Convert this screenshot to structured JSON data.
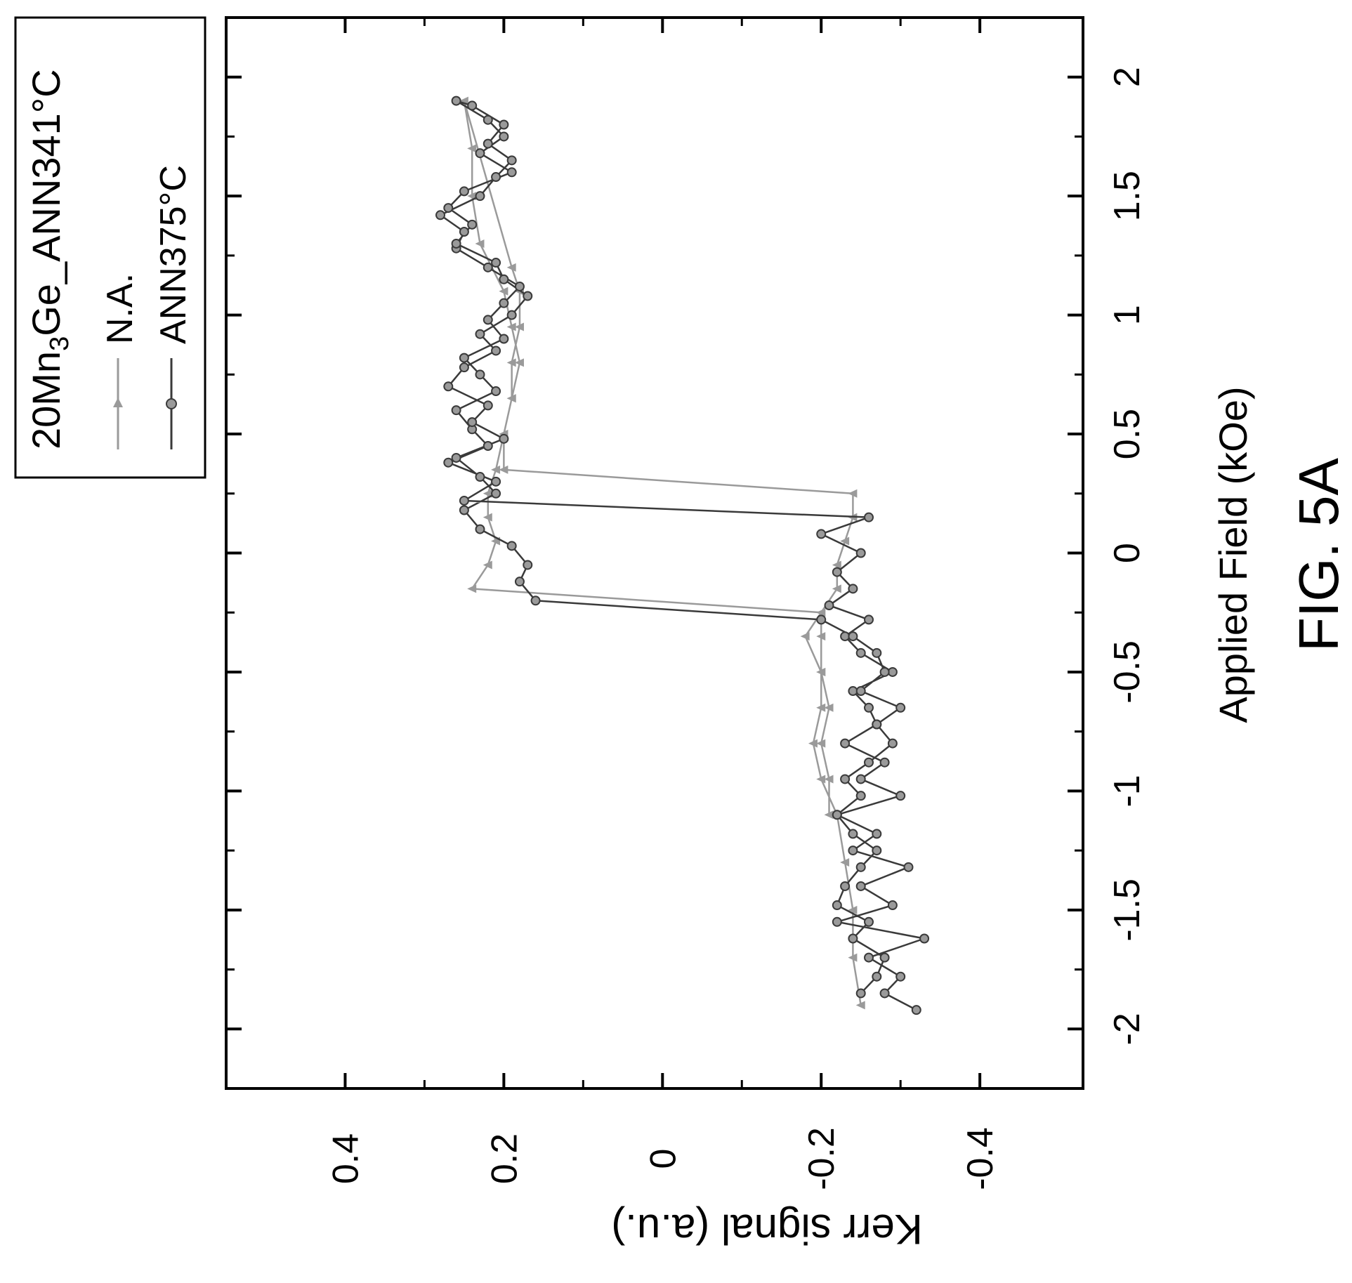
{
  "figure_label": "FIG. 5A",
  "chart_data": {
    "type": "scatter",
    "orientation": "rotated-90-ccw",
    "title": "",
    "xlabel": "Applied Field (kOe)",
    "ylabel": "Kerr signal (a.u.)",
    "xlim": [
      -2.25,
      2.25
    ],
    "ylim": [
      -0.53,
      0.55
    ],
    "x_ticks": [
      "-2",
      "-1.5",
      "-1",
      "-0.5",
      "0",
      "0.5",
      "1",
      "1.5",
      "2"
    ],
    "x_tick_values": [
      -2,
      -1.5,
      -1,
      -0.5,
      0,
      0.5,
      1,
      1.5,
      2
    ],
    "y_ticks": [
      "0.4",
      "0.2",
      "0",
      "-0.2",
      "-0.4"
    ],
    "y_tick_values": [
      0.4,
      0.2,
      0,
      -0.2,
      -0.4
    ],
    "grid": false,
    "legend": {
      "placement": "top-left",
      "title_parts": [
        "20Mn",
        "3",
        "Ge_ANN341°C"
      ],
      "entries": [
        "N.A.",
        "ANN375°C"
      ]
    },
    "series": [
      {
        "name": "N.A.",
        "color": "#9a9a9a",
        "marker": "triangle",
        "x": [
          -1.9,
          -1.7,
          -1.5,
          -1.3,
          -1.1,
          -0.95,
          -0.8,
          -0.65,
          -0.5,
          -0.35,
          -0.25,
          -0.15,
          -0.05,
          0.05,
          0.15,
          0.25,
          0.35,
          0.5,
          0.65,
          0.8,
          0.95,
          1.1,
          1.2,
          1.9,
          1.7,
          1.5,
          1.3,
          1.1,
          0.95,
          0.8,
          0.65,
          0.5,
          0.35,
          0.25,
          0.15,
          0.05,
          -0.05,
          -0.15,
          -0.25,
          -0.35,
          -0.5,
          -0.65,
          -0.8,
          -0.95,
          -1.1
        ],
        "y": [
          -0.25,
          -0.24,
          -0.24,
          -0.23,
          -0.22,
          -0.2,
          -0.19,
          -0.2,
          -0.2,
          -0.18,
          -0.2,
          -0.22,
          -0.22,
          -0.23,
          -0.24,
          -0.24,
          0.2,
          0.2,
          0.19,
          0.19,
          0.18,
          0.18,
          0.19,
          0.25,
          0.24,
          0.24,
          0.23,
          0.2,
          0.19,
          0.18,
          0.19,
          0.2,
          0.21,
          0.22,
          0.22,
          0.21,
          0.22,
          0.24,
          -0.2,
          -0.2,
          -0.2,
          -0.21,
          -0.2,
          -0.21,
          -0.21
        ]
      },
      {
        "name": "ANN375°C",
        "color": "#3a3a3a",
        "marker": "circle",
        "x": [
          -1.92,
          -1.85,
          -1.78,
          -1.7,
          -1.62,
          -1.55,
          -1.48,
          -1.4,
          -1.32,
          -1.25,
          -1.18,
          -1.1,
          -1.02,
          -0.95,
          -0.88,
          -0.8,
          -0.72,
          -0.65,
          -0.58,
          -0.5,
          -0.42,
          -0.35,
          -0.28,
          -0.22,
          -0.15,
          -0.08,
          0.0,
          0.08,
          0.15,
          0.22,
          0.3,
          0.38,
          0.45,
          0.52,
          0.6,
          0.68,
          0.75,
          0.82,
          0.9,
          0.98,
          1.05,
          1.12,
          1.2,
          1.28,
          1.35,
          1.42,
          1.5,
          1.58,
          1.65,
          1.72,
          1.8,
          1.88,
          1.9,
          1.82,
          1.75,
          1.68,
          1.6,
          1.52,
          1.45,
          1.38,
          1.3,
          1.22,
          1.15,
          1.08,
          1.0,
          0.92,
          0.85,
          0.78,
          0.7,
          0.62,
          0.55,
          0.48,
          0.4,
          0.32,
          0.25,
          0.18,
          0.1,
          0.03,
          -0.05,
          -0.12,
          -0.2,
          -0.28,
          -0.35,
          -0.42,
          -0.5,
          -0.58,
          -0.65,
          -0.72,
          -0.8,
          -0.88,
          -0.95,
          -1.02,
          -1.1,
          -1.18,
          -1.25,
          -1.32,
          -1.4,
          -1.48,
          -1.55,
          -1.62,
          -1.7,
          -1.78,
          -1.85
        ],
        "y": [
          -0.32,
          -0.28,
          -0.3,
          -0.26,
          -0.33,
          -0.22,
          -0.29,
          -0.25,
          -0.31,
          -0.24,
          -0.27,
          -0.22,
          -0.3,
          -0.25,
          -0.28,
          -0.23,
          -0.27,
          -0.26,
          -0.24,
          -0.29,
          -0.25,
          -0.23,
          -0.26,
          -0.21,
          -0.24,
          -0.22,
          -0.25,
          -0.2,
          -0.26,
          0.25,
          0.21,
          0.27,
          0.22,
          0.24,
          0.26,
          0.21,
          0.23,
          0.25,
          0.2,
          0.22,
          0.2,
          0.18,
          0.22,
          0.26,
          0.25,
          0.28,
          0.23,
          0.21,
          0.19,
          0.22,
          0.2,
          0.24,
          0.26,
          0.22,
          0.2,
          0.23,
          0.19,
          0.25,
          0.27,
          0.24,
          0.26,
          0.21,
          0.2,
          0.17,
          0.19,
          0.23,
          0.21,
          0.25,
          0.27,
          0.22,
          0.24,
          0.2,
          0.26,
          0.23,
          0.21,
          0.25,
          0.23,
          0.19,
          0.17,
          0.18,
          0.16,
          -0.2,
          -0.24,
          -0.27,
          -0.28,
          -0.25,
          -0.3,
          -0.27,
          -0.29,
          -0.26,
          -0.23,
          -0.25,
          -0.22,
          -0.24,
          -0.27,
          -0.25,
          -0.23,
          -0.22,
          -0.26,
          -0.24,
          -0.28,
          -0.27,
          -0.25
        ]
      }
    ]
  }
}
